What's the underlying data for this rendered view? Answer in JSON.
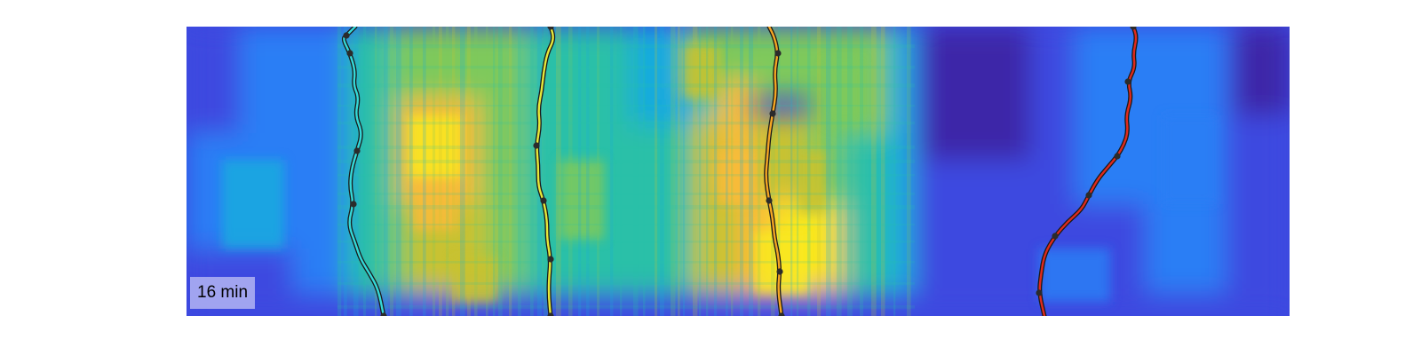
{
  "figure": {
    "time_label": "16 min"
  },
  "colors": {
    "background": "#ffffff",
    "colormap": [
      "#3e26a8",
      "#3c49e0",
      "#2b7ef5",
      "#17aade",
      "#2bc0a8",
      "#7ec95c",
      "#c8c230",
      "#f8bb3b",
      "#f9e71e"
    ],
    "trace_outline": "#1a1a1a",
    "node": "#2b2b2b"
  },
  "traces": [
    {
      "name": "cyan-trace",
      "color": "#34d8d8"
    },
    {
      "name": "yellow-trace",
      "color": "#e6e83a"
    },
    {
      "name": "orange-trace",
      "color": "#f5a623"
    },
    {
      "name": "red-trace",
      "color": "#e02a1c"
    }
  ]
}
